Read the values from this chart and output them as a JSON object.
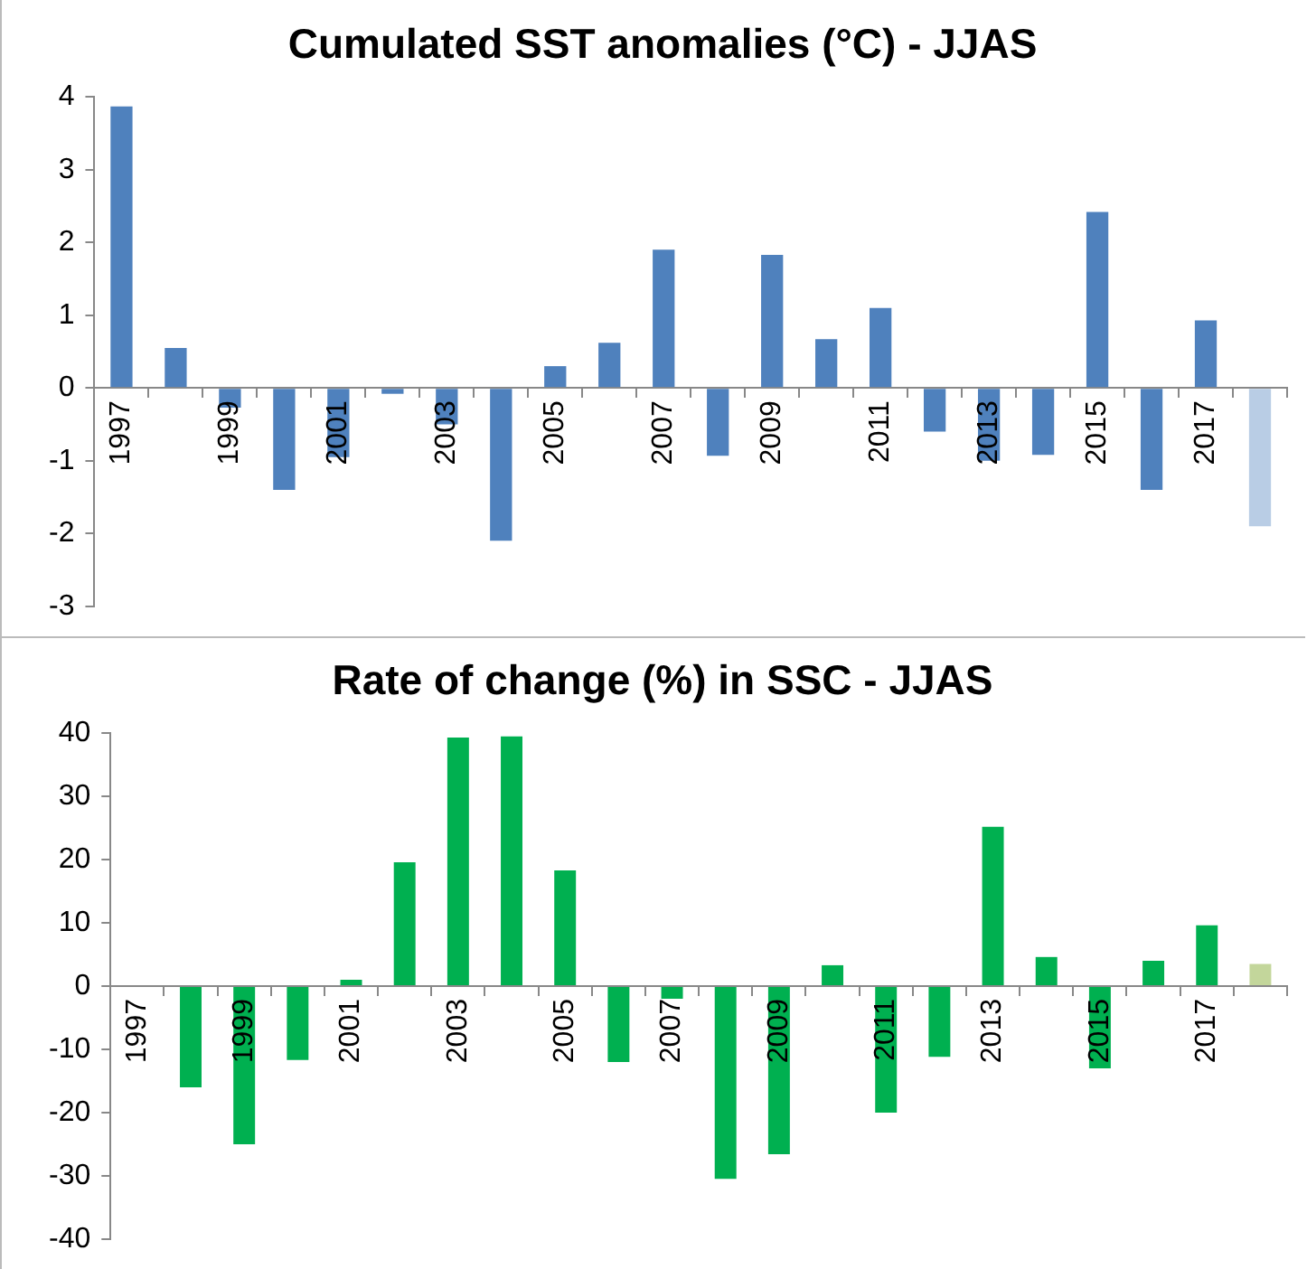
{
  "chart_data": [
    {
      "type": "bar",
      "title": "Cumulated SST anomalies (°C) - JJAS",
      "categories": [
        "1997",
        null,
        "1999",
        null,
        "2001",
        null,
        "2003",
        null,
        "2005",
        null,
        "2007",
        null,
        "2009",
        null,
        "2011",
        null,
        "2013",
        null,
        "2015",
        null,
        "2017",
        null
      ],
      "values": [
        3.87,
        0.55,
        -0.27,
        -1.4,
        -0.95,
        -0.08,
        -0.5,
        -2.1,
        0.3,
        0.62,
        1.9,
        -0.93,
        1.83,
        0.67,
        1.1,
        -0.6,
        -1.0,
        -0.92,
        2.42,
        -1.4,
        0.93,
        -1.9
      ],
      "colors": [
        "#4f81bd",
        "#4f81bd",
        "#4f81bd",
        "#4f81bd",
        "#4f81bd",
        "#4f81bd",
        "#4f81bd",
        "#4f81bd",
        "#4f81bd",
        "#4f81bd",
        "#4f81bd",
        "#4f81bd",
        "#4f81bd",
        "#4f81bd",
        "#4f81bd",
        "#4f81bd",
        "#4f81bd",
        "#4f81bd",
        "#4f81bd",
        "#4f81bd",
        "#4f81bd",
        "#b9cde5"
      ],
      "ylim": [
        -3,
        4
      ],
      "yticks": [
        -3,
        -2,
        -1,
        0,
        1,
        2,
        3,
        4
      ],
      "grid": false
    },
    {
      "type": "bar",
      "title": "Rate of change (%) in SSC - JJAS",
      "categories": [
        "1997",
        null,
        "1999",
        null,
        "2001",
        null,
        "2003",
        null,
        "2005",
        null,
        "2007",
        null,
        "2009",
        null,
        "2011",
        null,
        "2013",
        null,
        "2015",
        null,
        "2017",
        null
      ],
      "values": [
        0,
        -16,
        -25,
        -11.7,
        1,
        19.6,
        39.3,
        39.5,
        18.3,
        -12,
        -2,
        -30.5,
        -26.6,
        3.3,
        -20,
        -11.2,
        25.2,
        4.6,
        -13,
        4,
        9.6,
        3.5
      ],
      "colors": [
        "#00b050",
        "#00b050",
        "#00b050",
        "#00b050",
        "#00b050",
        "#00b050",
        "#00b050",
        "#00b050",
        "#00b050",
        "#00b050",
        "#00b050",
        "#00b050",
        "#00b050",
        "#00b050",
        "#00b050",
        "#00b050",
        "#00b050",
        "#00b050",
        "#00b050",
        "#00b050",
        "#00b050",
        "#c3d69b"
      ],
      "ylim": [
        -40,
        40
      ],
      "yticks": [
        -40,
        -30,
        -20,
        -10,
        0,
        10,
        20,
        30,
        40
      ],
      "grid": false
    }
  ]
}
